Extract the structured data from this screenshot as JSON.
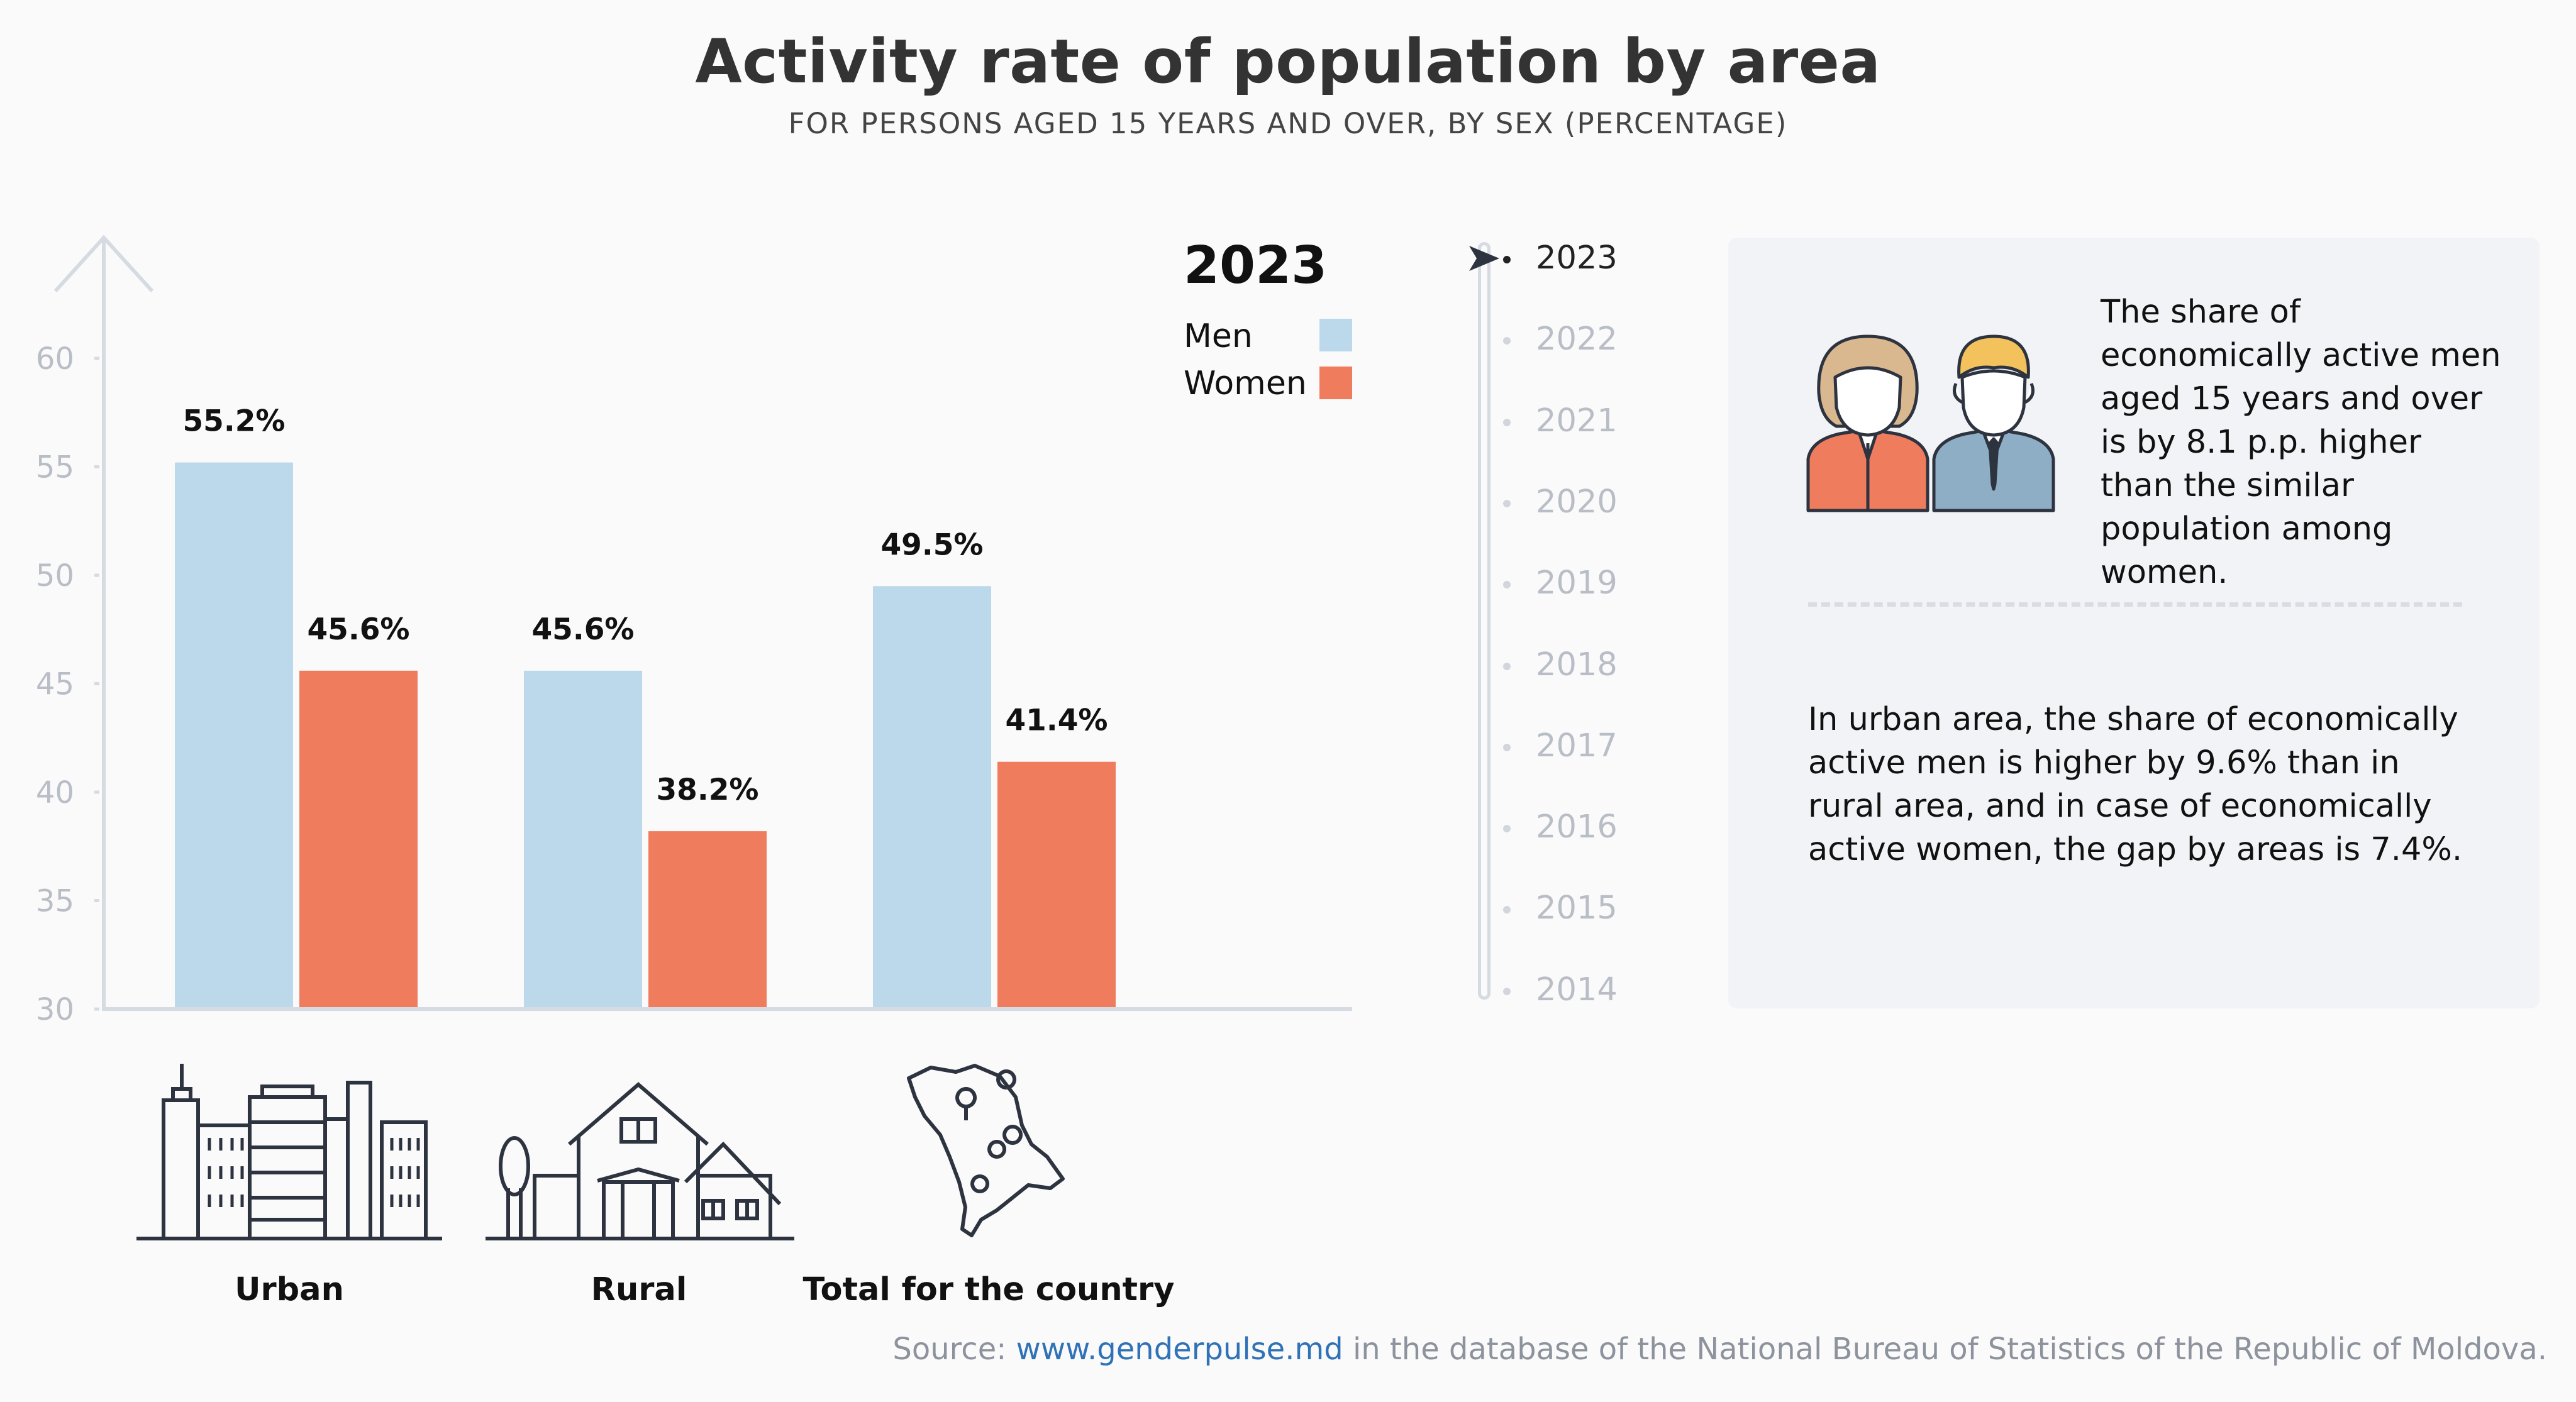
{
  "title": "Activity rate of population by area",
  "subtitle": "FOR PERSONS AGED 15 YEARS AND OVER, BY SEX (PERCENTAGE)",
  "legend": {
    "year": "2023",
    "men_label": "Men",
    "women_label": "Women",
    "men_color": "#bcd9ec",
    "women_color": "#f07c5e"
  },
  "timeline": {
    "selected": "2023",
    "years": [
      "2023",
      "2022",
      "2021",
      "2020",
      "2019",
      "2018",
      "2017",
      "2016",
      "2015",
      "2014"
    ]
  },
  "chart_data": {
    "type": "bar",
    "categories": [
      "Urban",
      "Rural",
      "Total for the country"
    ],
    "series": [
      {
        "name": "Men",
        "values": [
          55.2,
          45.6,
          49.5
        ],
        "labels": [
          "55.2%",
          "45.6%",
          "49.5%"
        ],
        "color": "#bcd9ec"
      },
      {
        "name": "Women",
        "values": [
          45.6,
          38.2,
          41.4
        ],
        "labels": [
          "45.6%",
          "38.2%",
          "41.4%"
        ],
        "color": "#f07c5e"
      }
    ],
    "ylim": [
      30,
      60
    ],
    "yticks": [
      "30",
      "35",
      "40",
      "45",
      "50",
      "55",
      "60"
    ],
    "grid": false,
    "legend_position": "top-right"
  },
  "category_icons": [
    "city-buildings-icon",
    "rural-house-icon",
    "moldova-map-icon"
  ],
  "panel": {
    "icon": "man-and-woman-icon",
    "note1": "The share of economically active men aged 15 years and over is by 8.1 p.p. higher than the similar population among women.",
    "note2": "In urban area, the share of economically active men is higher by 9.6% than in rural area, and in case of economically active women, the gap by areas is 7.4%."
  },
  "source": {
    "prefix": "Source: ",
    "link": "www.genderpulse.md",
    "suffix": " in the database of the National Bureau of Statistics of the Republic of Moldova."
  }
}
